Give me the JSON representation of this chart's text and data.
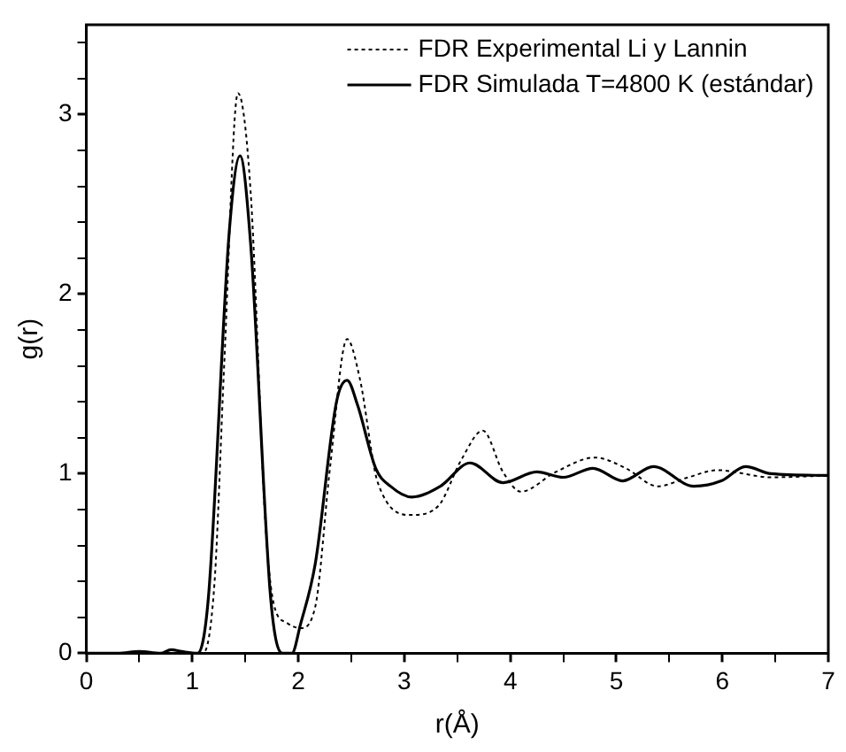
{
  "chart_data": {
    "type": "line",
    "xlabel": "r(Å)",
    "ylabel": "g(r)",
    "xlim": [
      0,
      7
    ],
    "ylim": [
      0,
      3.5
    ],
    "xticks": [
      0,
      {
        "value": 0.5,
        "label": null
      },
      1,
      {
        "value": 1.5,
        "label": null
      },
      2,
      {
        "value": 2.5,
        "label": null
      },
      3,
      {
        "value": 3.5,
        "label": null
      },
      4,
      {
        "value": 4.5,
        "label": null
      },
      5,
      {
        "value": 5.5,
        "label": null
      },
      6,
      {
        "value": 6.5,
        "label": null
      },
      7
    ],
    "yticks": [
      0,
      {
        "value": 0.2,
        "label": null
      },
      {
        "value": 0.4,
        "label": null
      },
      {
        "value": 0.6,
        "label": null
      },
      {
        "value": 0.8,
        "label": null
      },
      1,
      {
        "value": 1.2,
        "label": null
      },
      {
        "value": 1.4,
        "label": null
      },
      {
        "value": 1.6,
        "label": null
      },
      {
        "value": 1.8,
        "label": null
      },
      2,
      {
        "value": 2.2,
        "label": null
      },
      {
        "value": 2.4,
        "label": null
      },
      {
        "value": 2.6,
        "label": null
      },
      {
        "value": 2.8,
        "label": null
      },
      3,
      {
        "value": 3.2,
        "label": null
      },
      {
        "value": 3.4,
        "label": null
      }
    ],
    "grid": false,
    "legend": "top right",
    "marker": "none",
    "series": [
      {
        "name": "FDR Experimental Li y Lannin",
        "color": "#000000",
        "line_style": "dotted",
        "x": [
          0,
          0.5,
          1.0,
          1.1,
          1.21,
          1.3,
          1.43,
          1.55,
          1.69,
          1.77,
          1.89,
          2.02,
          2.16,
          2.3,
          2.46,
          2.58,
          2.75,
          3.07,
          3.32,
          3.54,
          3.74,
          3.93,
          4.1,
          4.43,
          4.8,
          5.09,
          5.39,
          5.68,
          5.95,
          6.46,
          7
        ],
        "values": [
          0,
          0,
          0,
          0,
          0.4,
          1.6,
          3.12,
          2.57,
          0.72,
          0.27,
          0.17,
          0.14,
          0.26,
          1.04,
          1.75,
          1.53,
          0.95,
          0.77,
          0.82,
          1.08,
          1.24,
          1.01,
          0.9,
          1.01,
          1.09,
          1.03,
          0.93,
          0.98,
          1.02,
          0.98,
          0.99
        ]
      },
      {
        "name": "FDR Simulada T=4800 K (estándar)",
        "color": "#000000",
        "line_style": "solid",
        "x": [
          0,
          0.3,
          0.5,
          0.7,
          0.8,
          0.9,
          1.05,
          1.15,
          1.35,
          1.45,
          1.55,
          1.74,
          1.85,
          1.94,
          2.02,
          2.16,
          2.36,
          2.46,
          2.56,
          2.73,
          2.87,
          3.07,
          3.34,
          3.62,
          3.93,
          4.25,
          4.5,
          4.78,
          5.06,
          5.35,
          5.73,
          5.99,
          6.22,
          6.46,
          7
        ],
        "values": [
          0,
          0,
          0.01,
          0,
          0.02,
          0.01,
          0,
          0.3,
          2.36,
          2.77,
          2.28,
          0.3,
          0,
          0,
          0.16,
          0.5,
          1.4,
          1.52,
          1.38,
          1.03,
          0.93,
          0.87,
          0.93,
          1.06,
          0.95,
          1.01,
          0.98,
          1.03,
          0.96,
          1.04,
          0.93,
          0.96,
          1.04,
          1.0,
          0.99
        ]
      }
    ]
  }
}
